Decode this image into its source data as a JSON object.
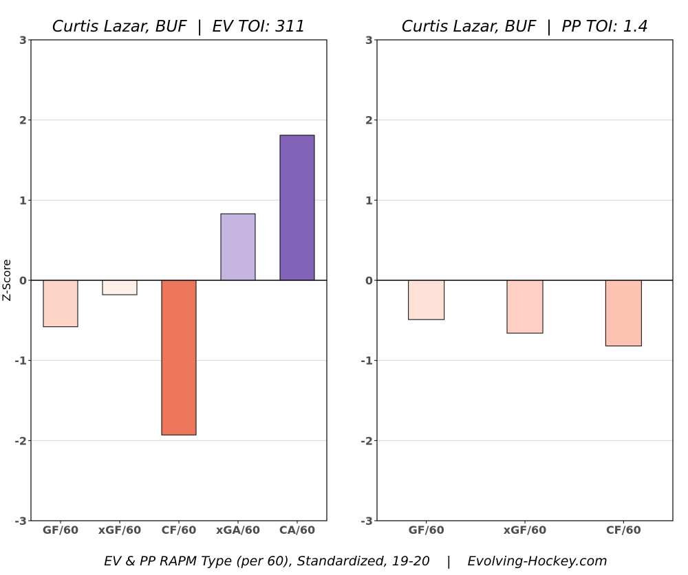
{
  "chart_data": [
    {
      "type": "bar",
      "title": "Curtis Lazar, BUF  |  EV TOI: 311",
      "ylabel": "Z-Score",
      "ylim": [
        -3,
        3
      ],
      "yticks": [
        3,
        2,
        1,
        0,
        -1,
        -2,
        -3
      ],
      "grid": "horizontal",
      "categories": [
        "GF/60",
        "xGF/60",
        "CF/60",
        "xGA/60",
        "CA/60"
      ],
      "values": [
        -0.58,
        -0.18,
        -1.93,
        0.83,
        1.81
      ],
      "colors": [
        "#fdd5c7",
        "#fff0ea",
        "#ec775d",
        "#c5b5e0",
        "#8163b7"
      ]
    },
    {
      "type": "bar",
      "title": "Curtis Lazar, BUF  |  PP TOI: 1.4",
      "ylabel": "",
      "ylim": [
        -3,
        3
      ],
      "yticks": [
        3,
        2,
        1,
        0,
        -1,
        -2,
        -3
      ],
      "grid": "horizontal",
      "categories": [
        "GF/60",
        "xGF/60",
        "CF/60"
      ],
      "values": [
        -0.49,
        -0.66,
        -0.82
      ],
      "colors": [
        "#fde0d6",
        "#fdd0c3",
        "#fcc3b2"
      ]
    }
  ],
  "footer": {
    "caption": "EV & PP RAPM Type (per 60), Standardized, 19-20    |    Evolving-Hockey.com"
  },
  "colors": {
    "grid": "#d9d9d9",
    "axis": "#000000",
    "tick_label": "#4d4d4d"
  }
}
